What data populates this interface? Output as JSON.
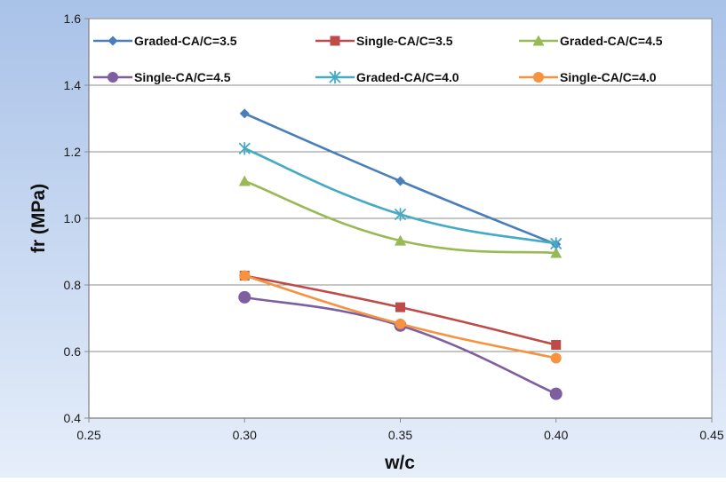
{
  "chart_data": {
    "type": "line",
    "title": "",
    "xlabel": "w/c",
    "ylabel": "fr (MPa)",
    "xlim": [
      0.25,
      0.45
    ],
    "ylim": [
      0.4,
      1.6
    ],
    "xticks": [
      "0.25",
      "0.30",
      "0.35",
      "0.40",
      "0.45"
    ],
    "yticks": [
      "0.4",
      "0.6",
      "0.8",
      "1.0",
      "1.2",
      "1.4",
      "1.6"
    ],
    "grid": "horizontal",
    "legend_position": "top",
    "x": [
      0.3,
      0.35,
      0.4
    ],
    "series": [
      {
        "name": "Graded-CA/C=3.5",
        "values": [
          1.315,
          1.112,
          0.922
        ],
        "color": "#4a7ebb",
        "marker": "diamond"
      },
      {
        "name": "Single-CA/C=3.5",
        "values": [
          0.828,
          0.733,
          0.62
        ],
        "color": "#be4b48",
        "marker": "square"
      },
      {
        "name": "Graded-CA/C=4.5",
        "values": [
          1.112,
          0.933,
          0.896
        ],
        "color": "#98b954",
        "marker": "triangle"
      },
      {
        "name": "Single-CA/C=4.5",
        "values": [
          0.763,
          0.678,
          0.473
        ],
        "color": "#7d5fa0",
        "marker": "circle"
      },
      {
        "name": "Graded-CA/C=4.0",
        "values": [
          1.21,
          1.012,
          0.924
        ],
        "color": "#46aac5",
        "marker": "asterisk"
      },
      {
        "name": "Single-CA/C=4.0",
        "values": [
          0.828,
          0.683,
          0.58
        ],
        "color": "#f69240",
        "marker": "circle"
      }
    ]
  }
}
